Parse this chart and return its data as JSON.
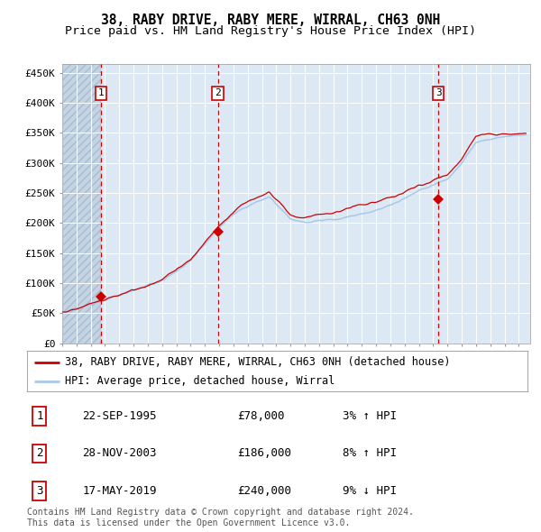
{
  "title": "38, RABY DRIVE, RABY MERE, WIRRAL, CH63 0NH",
  "subtitle": "Price paid vs. HM Land Registry's House Price Index (HPI)",
  "ylabel_ticks": [
    "£0",
    "£50K",
    "£100K",
    "£150K",
    "£200K",
    "£250K",
    "£300K",
    "£350K",
    "£400K",
    "£450K"
  ],
  "ytick_values": [
    0,
    50000,
    100000,
    150000,
    200000,
    250000,
    300000,
    350000,
    400000,
    450000
  ],
  "ylim": [
    0,
    465000
  ],
  "xlim_start": 1993.0,
  "xlim_end": 2025.8,
  "hpi_color": "#a8c8e8",
  "price_color": "#cc0000",
  "dashed_line_color": "#cc0000",
  "background_plot": "#dce9f5",
  "background_hatch": "#c4d4e4",
  "legend_label_price": "38, RABY DRIVE, RABY MERE, WIRRAL, CH63 0NH (detached house)",
  "legend_label_hpi": "HPI: Average price, detached house, Wirral",
  "sales": [
    {
      "label": "1",
      "date": 1995.73,
      "price": 78000,
      "display_date": "22-SEP-1995",
      "display_price": "£78,000",
      "hpi_pct": "3%",
      "direction": "↑"
    },
    {
      "label": "2",
      "date": 2003.91,
      "price": 186000,
      "display_date": "28-NOV-2003",
      "display_price": "£186,000",
      "hpi_pct": "8%",
      "direction": "↑"
    },
    {
      "label": "3",
      "date": 2019.37,
      "price": 240000,
      "display_date": "17-MAY-2019",
      "display_price": "£240,000",
      "hpi_pct": "9%",
      "direction": "↓"
    }
  ],
  "footer": "Contains HM Land Registry data © Crown copyright and database right 2024.\nThis data is licensed under the Open Government Licence v3.0.",
  "title_fontsize": 10.5,
  "subtitle_fontsize": 9.5,
  "axis_label_fontsize": 8,
  "legend_fontsize": 8.5,
  "footer_fontsize": 7
}
